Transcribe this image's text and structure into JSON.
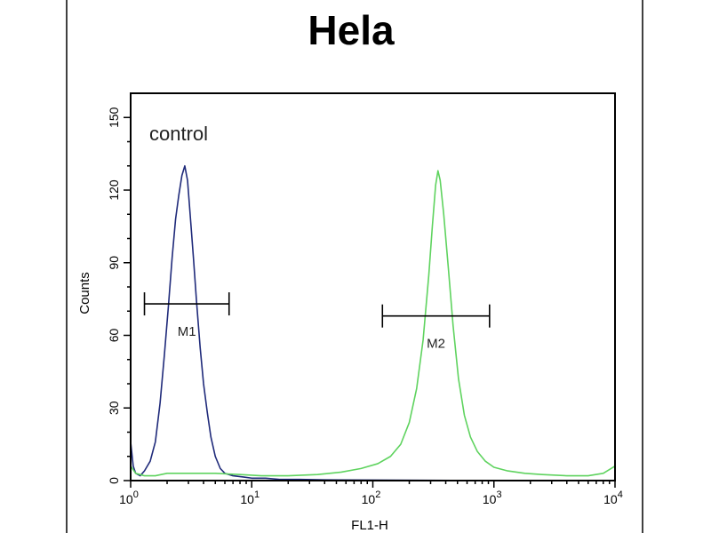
{
  "chart_data": {
    "type": "line",
    "title": "Hela",
    "xlabel": "FL1-H",
    "ylabel": "Counts",
    "x_scale": "log",
    "xlim": [
      1,
      10000
    ],
    "ylim": [
      0,
      160
    ],
    "x_ticks": [
      {
        "value": 1,
        "base": "10",
        "exp": "0"
      },
      {
        "value": 10,
        "base": "10",
        "exp": "1"
      },
      {
        "value": 100,
        "base": "10",
        "exp": "2"
      },
      {
        "value": 1000,
        "base": "10",
        "exp": "3"
      },
      {
        "value": 10000,
        "base": "10",
        "exp": "4"
      }
    ],
    "y_ticks": [
      {
        "value": 0,
        "label": "0"
      },
      {
        "value": 30,
        "label": "30"
      },
      {
        "value": 60,
        "label": "60"
      },
      {
        "value": 90,
        "label": "90"
      },
      {
        "value": 120,
        "label": "120"
      },
      {
        "value": 150,
        "label": "150"
      }
    ],
    "grid": false,
    "annotation": "control",
    "series": [
      {
        "color": "#1f2a7a",
        "points": [
          [
            1.0,
            16
          ],
          [
            1.05,
            6
          ],
          [
            1.1,
            3
          ],
          [
            1.2,
            2
          ],
          [
            1.3,
            4
          ],
          [
            1.45,
            8
          ],
          [
            1.6,
            16
          ],
          [
            1.75,
            32
          ],
          [
            1.9,
            52
          ],
          [
            2.05,
            72
          ],
          [
            2.2,
            92
          ],
          [
            2.35,
            108
          ],
          [
            2.5,
            118
          ],
          [
            2.65,
            126
          ],
          [
            2.8,
            130
          ],
          [
            2.95,
            124
          ],
          [
            3.1,
            110
          ],
          [
            3.3,
            92
          ],
          [
            3.5,
            74
          ],
          [
            3.75,
            55
          ],
          [
            4.0,
            40
          ],
          [
            4.3,
            28
          ],
          [
            4.6,
            18
          ],
          [
            5.0,
            10
          ],
          [
            5.5,
            5
          ],
          [
            6.0,
            3
          ],
          [
            7.0,
            2
          ],
          [
            8.5,
            1.5
          ],
          [
            10,
            1
          ],
          [
            13,
            1
          ],
          [
            17,
            0.5
          ],
          [
            25,
            0.5
          ],
          [
            40,
            0.3
          ],
          [
            100,
            0.2
          ],
          [
            1000,
            0
          ],
          [
            10000,
            0
          ]
        ]
      },
      {
        "color": "#5fd35f",
        "points": [
          [
            1.0,
            6
          ],
          [
            1.1,
            3
          ],
          [
            1.3,
            2
          ],
          [
            1.6,
            2
          ],
          [
            2.0,
            3
          ],
          [
            3.0,
            3
          ],
          [
            5.0,
            3
          ],
          [
            8.0,
            2.5
          ],
          [
            12,
            2
          ],
          [
            20,
            2
          ],
          [
            35,
            2.5
          ],
          [
            55,
            3.5
          ],
          [
            80,
            5
          ],
          [
            110,
            7
          ],
          [
            140,
            10
          ],
          [
            170,
            15
          ],
          [
            200,
            24
          ],
          [
            230,
            38
          ],
          [
            260,
            58
          ],
          [
            290,
            85
          ],
          [
            310,
            105
          ],
          [
            330,
            122
          ],
          [
            345,
            128
          ],
          [
            360,
            124
          ],
          [
            385,
            110
          ],
          [
            420,
            88
          ],
          [
            460,
            64
          ],
          [
            510,
            42
          ],
          [
            570,
            27
          ],
          [
            640,
            18
          ],
          [
            730,
            12
          ],
          [
            850,
            8
          ],
          [
            1000,
            5.5
          ],
          [
            1300,
            4
          ],
          [
            1800,
            3
          ],
          [
            2500,
            2.5
          ],
          [
            4000,
            2
          ],
          [
            6000,
            2
          ],
          [
            8000,
            3
          ],
          [
            10000,
            6
          ]
        ]
      }
    ],
    "markers": [
      {
        "label": "M1",
        "x_start": 1.3,
        "x_end": 6.5,
        "y": 73
      },
      {
        "label": "M2",
        "x_start": 120,
        "x_end": 920,
        "y": 68
      }
    ]
  }
}
